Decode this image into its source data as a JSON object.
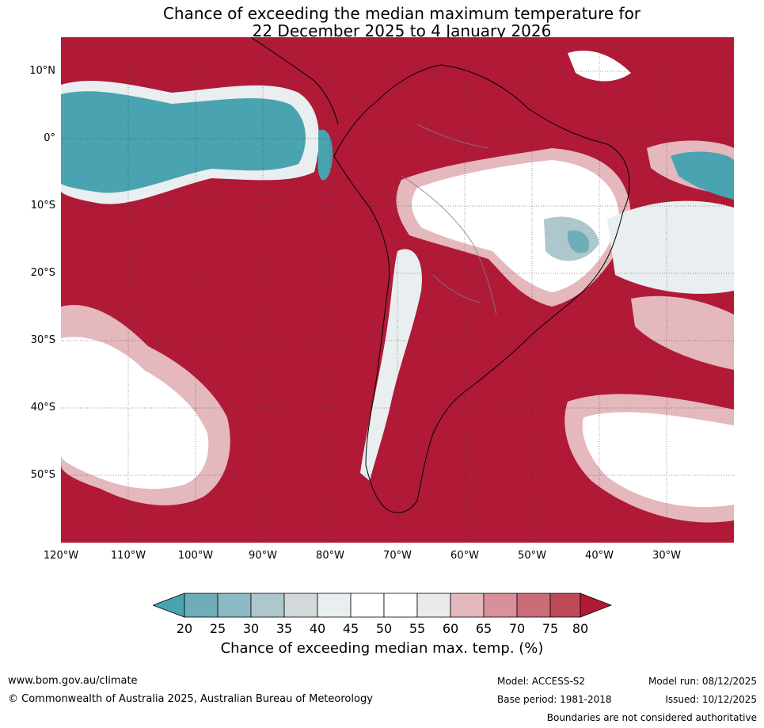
{
  "title": {
    "line1": "Chance of exceeding the median maximum temperature for",
    "line2": "22 December 2025 to 4 January 2026"
  },
  "map": {
    "lat_labels": [
      "10°N",
      "0°",
      "10°S",
      "20°S",
      "30°S",
      "40°S",
      "50°S"
    ],
    "lon_labels": [
      "120°W",
      "110°W",
      "100°W",
      "90°W",
      "80°W",
      "70°W",
      "60°W",
      "50°W",
      "40°W",
      "30°W"
    ]
  },
  "colorbar": {
    "ticks": [
      "20",
      "25",
      "30",
      "35",
      "40",
      "45",
      "50",
      "55",
      "60",
      "65",
      "70",
      "75",
      "80"
    ],
    "colors": [
      "#4aa3b0",
      "#6fadb8",
      "#8bbac5",
      "#adc7cd",
      "#d3d9db",
      "#e9eef0",
      "#ffffff",
      "#ffffff",
      "#eaeaeb",
      "#e4b8bd",
      "#d8909a",
      "#c96d78",
      "#be4a57",
      "#b01a37"
    ],
    "label": "Chance of exceeding median max. temp. (%)"
  },
  "footer": {
    "website": "www.bom.gov.au/climate",
    "copyright": "© Commonwealth of Australia 2025, Australian Bureau of Meteorology",
    "model": "Model: ACCESS-S2",
    "base_period": "Base period: 1981-2018",
    "model_run": "Model run: 08/12/2025",
    "issued": "Issued: 10/12/2025",
    "disclaimer": "Boundaries are not considered authoritative"
  },
  "colors": {
    "high": "#b01a37",
    "low": "#4aa3b0",
    "neutral": "#ffffff"
  }
}
